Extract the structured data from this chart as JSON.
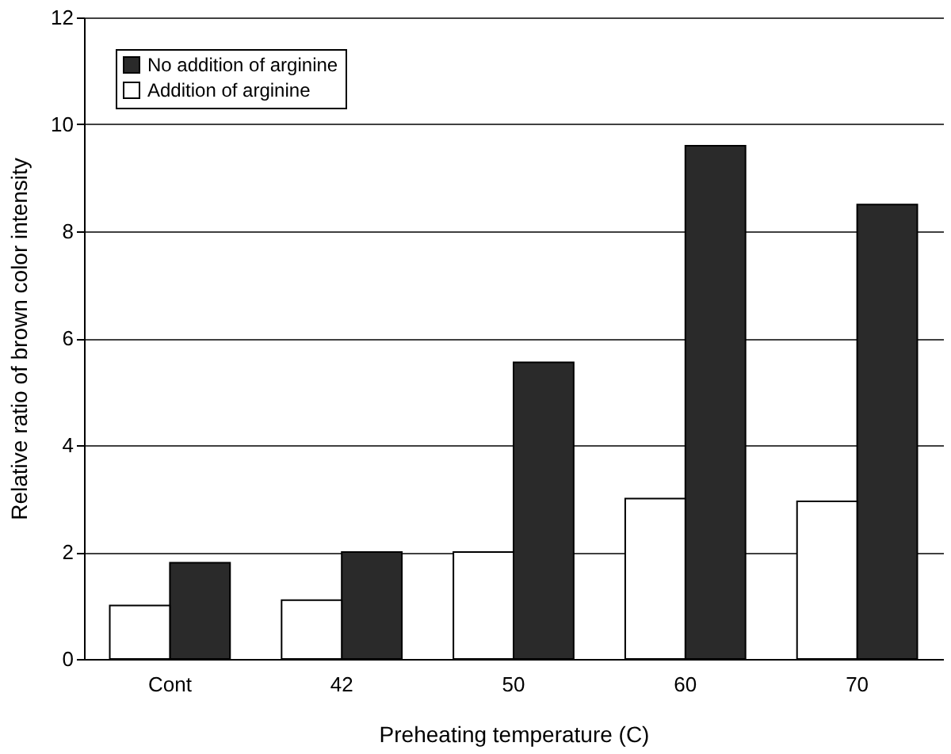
{
  "chart_data": {
    "type": "bar",
    "xlabel": "Preheating temperature (C)",
    "ylabel": "Relative ratio of brown color intensity",
    "categories": [
      "Cont",
      "42",
      "50",
      "60",
      "70"
    ],
    "series": [
      {
        "name": "No addition of arginine",
        "color": "#2a2a2a",
        "values": [
          1.8,
          2.0,
          5.55,
          9.6,
          8.5
        ]
      },
      {
        "name": "Addition of arginine",
        "color": "#ffffff",
        "values": [
          1.0,
          1.1,
          2.0,
          3.0,
          2.95
        ]
      }
    ],
    "ylim": [
      0,
      12
    ],
    "yticks": [
      0,
      2,
      4,
      6,
      8,
      10,
      12
    ],
    "grid": "y",
    "legend": "top left"
  }
}
